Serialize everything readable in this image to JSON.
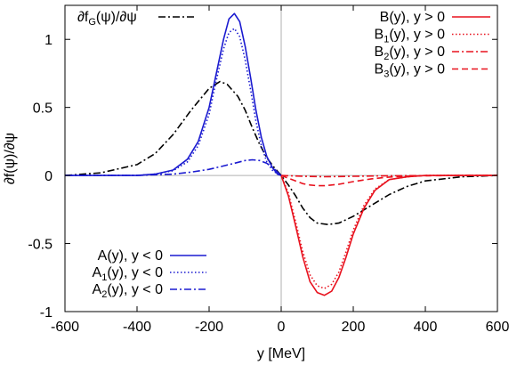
{
  "chart_data": {
    "type": "line",
    "xlabel": "y [MeV]",
    "ylabel": "∂f(ψ)/∂ψ",
    "xlim": [
      -600,
      600
    ],
    "ylim": [
      -1,
      1.25
    ],
    "xticks": [
      -600,
      -400,
      -200,
      0,
      200,
      400,
      600
    ],
    "xtick_labels": [
      "-600",
      "-400",
      "-200",
      "0",
      "200",
      "400",
      "600"
    ],
    "yticks": [
      -1,
      -0.5,
      0,
      0.5,
      1
    ],
    "ytick_labels": [
      "-1",
      "-0.5",
      "0",
      "0.5",
      "1"
    ],
    "grid": false,
    "reference_lines": {
      "x": 0,
      "y": 0
    },
    "legends": [
      {
        "placement": "top-left",
        "items": [
          "fg"
        ]
      },
      {
        "placement": "top-right",
        "items": [
          "B",
          "B1",
          "B2",
          "B3"
        ]
      },
      {
        "placement": "bottom-left",
        "items": [
          "A",
          "A1",
          "A2"
        ]
      }
    ],
    "series": [
      {
        "key": "fg",
        "label": {
          "main": "∂f",
          "sub": "G",
          "rest": "(ψ)/∂ψ"
        },
        "color": "#000000",
        "dash": "dashdot",
        "x": [
          -600,
          -500,
          -400,
          -350,
          -300,
          -250,
          -200,
          -170,
          -150,
          -120,
          -100,
          -80,
          -60,
          -40,
          -20,
          0,
          20,
          40,
          60,
          80,
          100,
          130,
          160,
          200,
          250,
          300,
          350,
          400,
          500,
          600
        ],
        "y": [
          0.0,
          0.02,
          0.08,
          0.16,
          0.3,
          0.48,
          0.64,
          0.69,
          0.67,
          0.58,
          0.48,
          0.35,
          0.23,
          0.13,
          0.06,
          0.0,
          -0.07,
          -0.15,
          -0.24,
          -0.31,
          -0.35,
          -0.36,
          -0.35,
          -0.3,
          -0.22,
          -0.14,
          -0.08,
          -0.04,
          -0.01,
          0.0
        ]
      },
      {
        "key": "B",
        "label": {
          "main": "B",
          "sub": "",
          "rest": "(y), y > 0"
        },
        "color": "#e8121e",
        "dash": "solid",
        "x": [
          0,
          20,
          40,
          60,
          80,
          100,
          120,
          140,
          160,
          180,
          200,
          230,
          260,
          300,
          350,
          400,
          500,
          600
        ],
        "y": [
          0.0,
          -0.15,
          -0.37,
          -0.6,
          -0.78,
          -0.86,
          -0.88,
          -0.85,
          -0.75,
          -0.6,
          -0.43,
          -0.24,
          -0.11,
          -0.03,
          -0.01,
          0.0,
          0.0,
          0.0
        ]
      },
      {
        "key": "B1",
        "label": {
          "main": "B",
          "sub": "1",
          "rest": "(y), y > 0"
        },
        "color": "#e8121e",
        "dash": "dotted",
        "x": [
          0,
          20,
          40,
          60,
          80,
          100,
          120,
          140,
          160,
          180,
          200,
          230,
          260,
          300,
          350,
          400,
          500,
          600
        ],
        "y": [
          0.0,
          -0.13,
          -0.34,
          -0.56,
          -0.73,
          -0.81,
          -0.83,
          -0.8,
          -0.71,
          -0.56,
          -0.4,
          -0.22,
          -0.1,
          -0.03,
          -0.01,
          0.0,
          0.0,
          0.0
        ]
      },
      {
        "key": "B2",
        "label": {
          "main": "B",
          "sub": "2",
          "rest": "(y), y > 0"
        },
        "color": "#e8121e",
        "dash": "dashdot",
        "x": [
          0,
          40,
          80,
          120,
          160,
          200,
          250,
          300,
          400,
          500,
          600
        ],
        "y": [
          0.0,
          -0.004,
          -0.007,
          -0.009,
          -0.008,
          -0.006,
          -0.004,
          -0.002,
          -0.001,
          0.0,
          0.0
        ]
      },
      {
        "key": "B3",
        "label": {
          "main": "B",
          "sub": "3",
          "rest": "(y), y > 0"
        },
        "color": "#e8121e",
        "dash": "dashed",
        "x": [
          0,
          20,
          40,
          60,
          80,
          100,
          120,
          140,
          160,
          180,
          200,
          250,
          300,
          350,
          400,
          500,
          600
        ],
        "y": [
          0.0,
          -0.02,
          -0.04,
          -0.06,
          -0.07,
          -0.075,
          -0.075,
          -0.07,
          -0.065,
          -0.055,
          -0.045,
          -0.025,
          -0.012,
          -0.005,
          -0.002,
          0.0,
          0.0
        ]
      },
      {
        "key": "A",
        "label": {
          "main": "A",
          "sub": "",
          "rest": "(y), y < 0"
        },
        "color": "#1a1ad0",
        "dash": "solid",
        "x": [
          -600,
          -500,
          -400,
          -350,
          -300,
          -260,
          -230,
          -200,
          -180,
          -160,
          -145,
          -130,
          -115,
          -100,
          -85,
          -70,
          -55,
          -40,
          -25,
          -10,
          0
        ],
        "y": [
          0.0,
          0.0,
          0.0,
          0.01,
          0.04,
          0.12,
          0.25,
          0.5,
          0.75,
          1.0,
          1.15,
          1.19,
          1.13,
          0.95,
          0.72,
          0.48,
          0.28,
          0.14,
          0.06,
          0.01,
          0.0
        ]
      },
      {
        "key": "A1",
        "label": {
          "main": "A",
          "sub": "1",
          "rest": "(y), y < 0"
        },
        "color": "#1a1ad0",
        "dash": "dotted",
        "x": [
          -600,
          -500,
          -400,
          -350,
          -300,
          -260,
          -230,
          -200,
          -180,
          -160,
          -145,
          -130,
          -115,
          -100,
          -85,
          -70,
          -55,
          -40,
          -25,
          -10,
          0
        ],
        "y": [
          0.0,
          0.0,
          0.0,
          0.01,
          0.035,
          0.1,
          0.22,
          0.45,
          0.7,
          0.93,
          1.05,
          1.08,
          1.02,
          0.85,
          0.63,
          0.4,
          0.22,
          0.1,
          0.04,
          0.01,
          0.0
        ]
      },
      {
        "key": "A2",
        "label": {
          "main": "A",
          "sub": "2",
          "rest": "(y), y < 0"
        },
        "color": "#1a1ad0",
        "dash": "dashdot",
        "x": [
          -600,
          -500,
          -400,
          -350,
          -300,
          -250,
          -200,
          -160,
          -130,
          -100,
          -80,
          -60,
          -40,
          -20,
          0
        ],
        "y": [
          0.0,
          0.0,
          0.0,
          0.005,
          0.01,
          0.025,
          0.045,
          0.07,
          0.09,
          0.11,
          0.115,
          0.11,
          0.09,
          0.05,
          0.0
        ]
      }
    ]
  }
}
